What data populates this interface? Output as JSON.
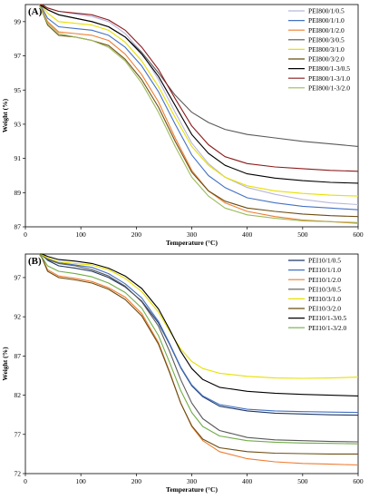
{
  "chart_data": [
    {
      "type": "line",
      "panel_label": "(A)",
      "xlabel": "Temperature (°C)",
      "ylabel": "Weight (%)",
      "xlim": [
        0,
        600
      ],
      "ylim": [
        87,
        100
      ],
      "xticks": [
        0,
        100,
        200,
        300,
        400,
        500,
        600
      ],
      "yticks": [
        87,
        89,
        91,
        93,
        95,
        97,
        99
      ],
      "legend_position": "top-right",
      "grid": false,
      "x": [
        25,
        30,
        40,
        60,
        90,
        120,
        150,
        180,
        210,
        240,
        270,
        300,
        330,
        360,
        400,
        450,
        500,
        550,
        600
      ],
      "series": [
        {
          "name": "PEI800/1/0.5",
          "color": "#b9b6de",
          "values": [
            100,
            99.95,
            99.8,
            99.6,
            99.45,
            99.3,
            99.0,
            98.3,
            97.2,
            95.6,
            93.7,
            91.9,
            90.7,
            89.9,
            89.3,
            88.9,
            88.6,
            88.4,
            88.3
          ]
        },
        {
          "name": "PEI800/1/1.0",
          "color": "#4472c4",
          "values": [
            100,
            99.8,
            99.2,
            98.7,
            98.6,
            98.5,
            98.2,
            97.5,
            96.4,
            94.9,
            93.0,
            91.2,
            90.0,
            89.3,
            88.7,
            88.4,
            88.2,
            88.1,
            88.0
          ]
        },
        {
          "name": "PEI800/1/2.0",
          "color": "#ed7d31",
          "values": [
            100,
            99.7,
            99.0,
            98.4,
            98.3,
            98.2,
            97.9,
            97.1,
            95.9,
            94.3,
            92.2,
            90.3,
            89.1,
            88.4,
            87.9,
            87.6,
            87.4,
            87.3,
            87.2
          ]
        },
        {
          "name": "PEI800/3/0.5",
          "color": "#595959",
          "values": [
            100,
            99.95,
            99.7,
            99.4,
            99.2,
            99.0,
            98.7,
            98.1,
            97.2,
            96.0,
            94.7,
            93.7,
            93.1,
            92.7,
            92.4,
            92.2,
            92.0,
            91.85,
            91.7
          ]
        },
        {
          "name": "PEI800/3/1.0",
          "color": "#e8e000",
          "values": [
            100,
            99.9,
            99.5,
            99.0,
            98.9,
            98.8,
            98.5,
            97.8,
            96.7,
            95.2,
            93.4,
            91.7,
            90.6,
            89.9,
            89.4,
            89.1,
            88.95,
            88.85,
            88.8
          ]
        },
        {
          "name": "PEI800/3/2.0",
          "color": "#6b4d12",
          "values": [
            100,
            99.6,
            98.8,
            98.2,
            98.1,
            97.9,
            97.6,
            96.8,
            95.6,
            94.0,
            92.0,
            90.2,
            89.1,
            88.5,
            88.1,
            87.9,
            87.75,
            87.65,
            87.6
          ]
        },
        {
          "name": "PEI800/1-3/0.5",
          "color": "#000000",
          "values": [
            100,
            99.9,
            99.7,
            99.4,
            99.2,
            99.0,
            98.7,
            98.1,
            97.1,
            95.8,
            94.1,
            92.4,
            91.3,
            90.6,
            90.1,
            89.85,
            89.7,
            89.6,
            89.55
          ]
        },
        {
          "name": "PEI800/1-3/1.0",
          "color": "#8b1a1a",
          "values": [
            100,
            100,
            99.8,
            99.6,
            99.5,
            99.4,
            99.1,
            98.5,
            97.5,
            96.2,
            94.5,
            92.9,
            91.8,
            91.1,
            90.7,
            90.5,
            90.4,
            90.3,
            90.25
          ]
        },
        {
          "name": "PEI800/1-3/2.0",
          "color": "#9bbb59",
          "values": [
            100,
            99.6,
            98.9,
            98.3,
            98.1,
            97.9,
            97.5,
            96.7,
            95.4,
            93.7,
            91.7,
            89.9,
            88.8,
            88.1,
            87.7,
            87.5,
            87.35,
            87.3,
            87.25
          ]
        }
      ]
    },
    {
      "type": "line",
      "panel_label": "(B)",
      "xlabel": "Temperature (°C)",
      "ylabel": "Weight (%)",
      "xlim": [
        0,
        600
      ],
      "ylim": [
        72,
        100
      ],
      "xticks": [
        0,
        100,
        200,
        300,
        400,
        500,
        600
      ],
      "yticks": [
        72,
        77,
        82,
        87,
        92,
        97
      ],
      "legend_position": "top-right",
      "grid": false,
      "x": [
        25,
        30,
        40,
        60,
        90,
        120,
        150,
        180,
        210,
        240,
        260,
        280,
        300,
        320,
        350,
        400,
        450,
        500,
        550,
        600
      ],
      "series": [
        {
          "name": "PEI10/1/0.5",
          "color": "#1f3864",
          "values": [
            100,
            99.9,
            99.2,
            98.5,
            98.2,
            97.8,
            97.0,
            95.8,
            94.0,
            91.2,
            88.5,
            85.5,
            83.2,
            81.8,
            80.6,
            80.0,
            79.7,
            79.6,
            79.5,
            79.45
          ]
        },
        {
          "name": "PEI10/1/1.0",
          "color": "#4472c4",
          "values": [
            100,
            99.9,
            99.4,
            98.9,
            98.6,
            98.3,
            97.5,
            96.2,
            94.4,
            91.4,
            88.6,
            85.6,
            83.3,
            81.9,
            80.8,
            80.2,
            80.0,
            79.9,
            79.85,
            79.8
          ]
        },
        {
          "name": "PEI10/1/2.0",
          "color": "#ed7d31",
          "values": [
            100,
            99.5,
            98.0,
            97.2,
            96.9,
            96.5,
            95.7,
            94.5,
            92.4,
            88.7,
            85.0,
            81.0,
            78.0,
            76.2,
            74.8,
            73.9,
            73.5,
            73.3,
            73.2,
            73.1
          ]
        },
        {
          "name": "PEI10/3/0.5",
          "color": "#595959",
          "values": [
            100,
            99.8,
            99.3,
            98.8,
            98.5,
            98.0,
            97.2,
            95.9,
            93.9,
            90.8,
            87.6,
            84.0,
            81.0,
            79.0,
            77.5,
            76.6,
            76.3,
            76.2,
            76.1,
            76.05
          ]
        },
        {
          "name": "PEI10/3/1.0",
          "color": "#e8e000",
          "values": [
            100,
            99.9,
            99.5,
            99.0,
            98.8,
            98.6,
            98.0,
            96.9,
            95.2,
            92.6,
            90.2,
            87.9,
            86.3,
            85.4,
            84.8,
            84.4,
            84.2,
            84.15,
            84.2,
            84.3
          ]
        },
        {
          "name": "PEI10/3/2.0",
          "color": "#6b4d12",
          "values": [
            100,
            99.5,
            97.8,
            97.0,
            96.7,
            96.3,
            95.5,
            94.2,
            92.1,
            88.5,
            84.9,
            81.0,
            78.1,
            76.4,
            75.3,
            74.8,
            74.6,
            74.55,
            74.5,
            74.5
          ]
        },
        {
          "name": "PEI10/1-3/0.5",
          "color": "#000000",
          "values": [
            100,
            100,
            99.7,
            99.3,
            99.1,
            98.8,
            98.2,
            97.2,
            95.6,
            93.0,
            90.4,
            87.6,
            85.4,
            84.0,
            83.0,
            82.5,
            82.25,
            82.1,
            82.0,
            81.9
          ]
        },
        {
          "name": "PEI10/1-3/2.0",
          "color": "#70ad47",
          "values": [
            100,
            99.6,
            98.5,
            97.8,
            97.5,
            97.1,
            96.3,
            95.1,
            93.1,
            89.6,
            86.2,
            82.6,
            79.8,
            78.0,
            76.8,
            76.2,
            76.0,
            75.9,
            75.85,
            75.8
          ]
        }
      ]
    }
  ]
}
